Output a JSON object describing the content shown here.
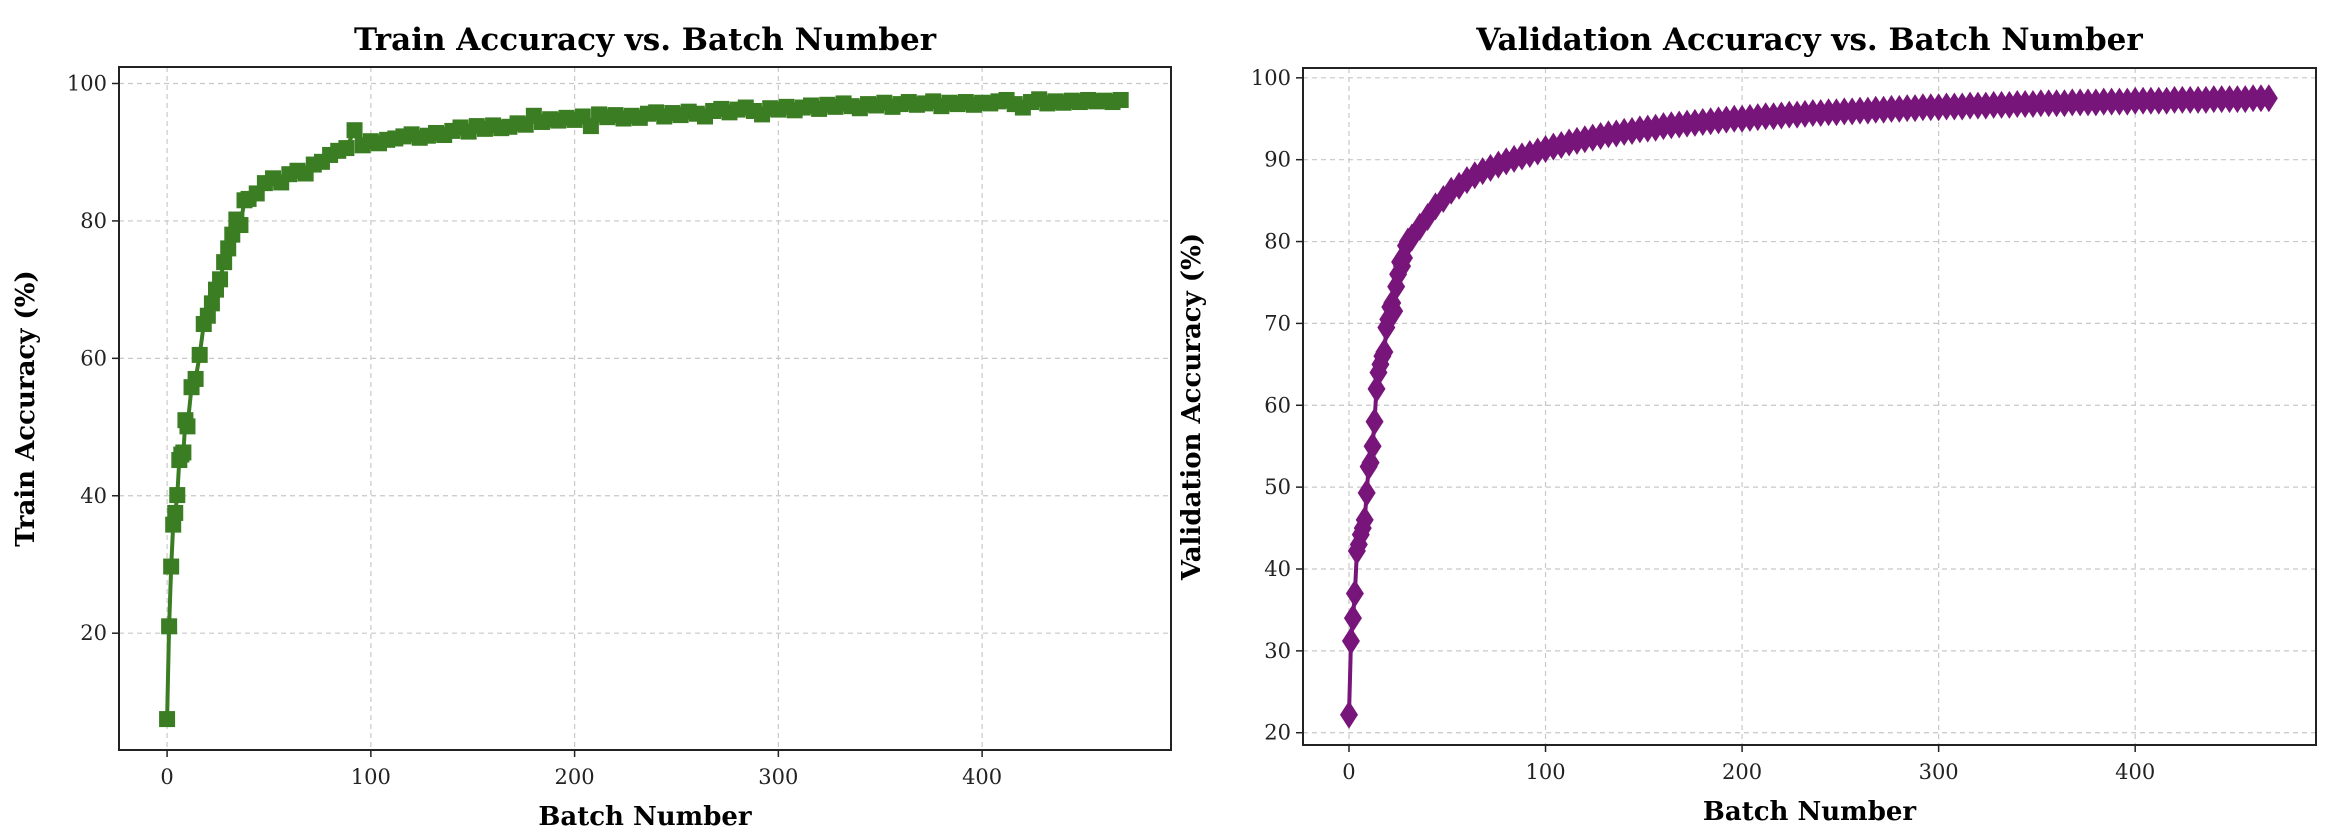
{
  "chart_data": [
    {
      "type": "line",
      "title": "Train Accuracy vs. Batch Number",
      "xlabel": "Batch Number",
      "ylabel": "Train Accuracy (%)",
      "xlim": [
        -23.6,
        492.7
      ],
      "ylim": [
        3.0,
        102.4
      ],
      "xticks": [
        0,
        100,
        200,
        300,
        400
      ],
      "yticks": [
        20,
        40,
        60,
        80,
        100
      ],
      "grid": true,
      "marker": "square",
      "color": "#3a7d22",
      "x": [
        0,
        1,
        2,
        3,
        4,
        5,
        6,
        7,
        8,
        9,
        10,
        12,
        14,
        16,
        18,
        20,
        22,
        24,
        26,
        28,
        30,
        32,
        34,
        36,
        38,
        40,
        44,
        48,
        52,
        56,
        60,
        64,
        68,
        72,
        76,
        80,
        84,
        88,
        92,
        96,
        100,
        104,
        108,
        112,
        116,
        120,
        124,
        128,
        132,
        136,
        140,
        144,
        148,
        152,
        156,
        160,
        164,
        168,
        172,
        176,
        180,
        184,
        188,
        192,
        196,
        200,
        204,
        208,
        212,
        216,
        220,
        224,
        228,
        232,
        236,
        240,
        244,
        248,
        252,
        256,
        260,
        264,
        268,
        272,
        276,
        280,
        284,
        288,
        292,
        296,
        300,
        304,
        308,
        312,
        316,
        320,
        324,
        328,
        332,
        336,
        340,
        344,
        348,
        352,
        356,
        360,
        364,
        368,
        372,
        376,
        380,
        384,
        388,
        392,
        396,
        400,
        404,
        408,
        412,
        416,
        420,
        424,
        428,
        432,
        436,
        440,
        444,
        448,
        452,
        456,
        460,
        464,
        468
      ],
      "y": [
        7.5,
        21,
        29.7,
        35.8,
        37.5,
        40.1,
        45.2,
        46,
        46.3,
        51,
        50.1,
        55.8,
        57,
        60.5,
        65,
        66.2,
        68,
        70,
        71.5,
        74,
        76,
        78,
        80.2,
        79.4,
        83,
        83.2,
        84.0,
        85.5,
        86.2,
        85.6,
        86.8,
        87.3,
        86.9,
        88.2,
        88.6,
        89.6,
        90.2,
        90.6,
        93.2,
        91.0,
        91.6,
        91.3,
        91.8,
        92.0,
        92.3,
        92.6,
        92.1,
        92.4,
        92.8,
        92.5,
        93.1,
        93.6,
        93.0,
        93.8,
        93.4,
        93.9,
        93.5,
        93.7,
        94.2,
        94.0,
        95.3,
        94.4,
        94.8,
        94.6,
        95.0,
        94.7,
        95.2,
        93.8,
        95.5,
        95.1,
        95.4,
        94.9,
        95.3,
        95.0,
        95.6,
        95.8,
        95.2,
        95.7,
        95.4,
        95.9,
        95.6,
        95.2,
        96.0,
        96.3,
        95.8,
        96.2,
        96.5,
        96.0,
        95.5,
        96.4,
        96.2,
        96.6,
        96.1,
        96.5,
        96.8,
        96.3,
        96.9,
        96.6,
        97.1,
        96.7,
        96.4,
        97.0,
        96.8,
        97.2,
        96.6,
        97.0,
        97.3,
        96.9,
        97.1,
        97.4,
        96.7,
        97.2,
        97.0,
        97.3,
        96.9,
        97.2,
        97.1,
        97.4,
        97.6,
        97.0,
        96.5,
        97.3,
        97.7,
        97.1,
        97.4,
        97.2,
        97.5,
        97.3,
        97.6,
        97.4,
        97.5,
        97.3,
        97.6
      ]
    },
    {
      "type": "line",
      "title": "Validation Accuracy vs. Batch Number",
      "xlabel": "Batch Number",
      "ylabel": "Validation Accuracy (%)",
      "xlim": [
        -23.4,
        492
      ],
      "ylim": [
        18.5,
        101.2
      ],
      "xticks": [
        0,
        100,
        200,
        300,
        400
      ],
      "yticks": [
        20,
        30,
        40,
        50,
        60,
        70,
        80,
        90,
        100
      ],
      "grid": true,
      "marker": "diamond",
      "color": "#77157a",
      "x": [
        0,
        1,
        2,
        3,
        4,
        5,
        6,
        7,
        8,
        9,
        10,
        11,
        12,
        13,
        14,
        15,
        16,
        17,
        18,
        19,
        20,
        21,
        22,
        23,
        24,
        25,
        26,
        27,
        28,
        29,
        30,
        32,
        36,
        40,
        44,
        48,
        52,
        56,
        60,
        64,
        68,
        72,
        76,
        80,
        84,
        88,
        92,
        96,
        100,
        104,
        108,
        112,
        116,
        120,
        124,
        128,
        132,
        136,
        140,
        144,
        148,
        152,
        156,
        160,
        164,
        168,
        172,
        176,
        180,
        184,
        188,
        192,
        196,
        200,
        204,
        208,
        212,
        216,
        220,
        224,
        228,
        232,
        236,
        240,
        244,
        248,
        252,
        256,
        260,
        264,
        268,
        272,
        276,
        280,
        284,
        288,
        292,
        296,
        300,
        304,
        308,
        312,
        316,
        320,
        324,
        328,
        332,
        336,
        340,
        344,
        348,
        352,
        356,
        360,
        364,
        368,
        372,
        376,
        380,
        384,
        388,
        392,
        396,
        400,
        404,
        408,
        412,
        416,
        420,
        424,
        428,
        432,
        436,
        440,
        444,
        448,
        452,
        456,
        460,
        464,
        468
      ],
      "y": [
        22.2,
        31.2,
        34,
        37,
        42.2,
        43,
        44.2,
        45,
        46,
        49.3,
        52.5,
        53,
        55,
        58,
        62,
        64,
        65,
        66,
        66.5,
        69.5,
        70.5,
        72,
        72.5,
        71.5,
        74.5,
        76,
        77.5,
        77,
        78,
        79.5,
        80,
        80.5,
        81.8,
        83.0,
        84.3,
        85.2,
        86.2,
        86.8,
        87.5,
        88.1,
        88.6,
        89.0,
        89.4,
        89.8,
        90.1,
        90.4,
        90.7,
        91.0,
        91.3,
        91.6,
        91.8,
        92.1,
        92.3,
        92.5,
        92.7,
        92.9,
        93.1,
        93.2,
        93.4,
        93.5,
        93.7,
        93.8,
        93.9,
        94.1,
        94.2,
        94.3,
        94.4,
        94.5,
        94.6,
        94.7,
        94.8,
        94.9,
        95.0,
        95.0,
        95.1,
        95.2,
        95.3,
        95.3,
        95.4,
        95.5,
        95.5,
        95.6,
        95.7,
        95.7,
        95.8,
        95.8,
        95.9,
        95.9,
        96.0,
        96.0,
        96.1,
        96.1,
        96.2,
        96.2,
        96.3,
        96.3,
        96.4,
        96.4,
        96.4,
        96.5,
        96.5,
        96.5,
        96.6,
        96.6,
        96.6,
        96.7,
        96.7,
        96.7,
        96.8,
        96.8,
        96.8,
        96.9,
        96.9,
        96.9,
        96.9,
        97.0,
        97.0,
        97.0,
        97.0,
        97.1,
        97.1,
        97.1,
        97.1,
        97.2,
        97.2,
        97.2,
        97.2,
        97.2,
        97.3,
        97.3,
        97.3,
        97.3,
        97.3,
        97.4,
        97.4,
        97.4,
        97.4,
        97.4,
        97.5,
        97.5,
        97.5
      ]
    }
  ]
}
